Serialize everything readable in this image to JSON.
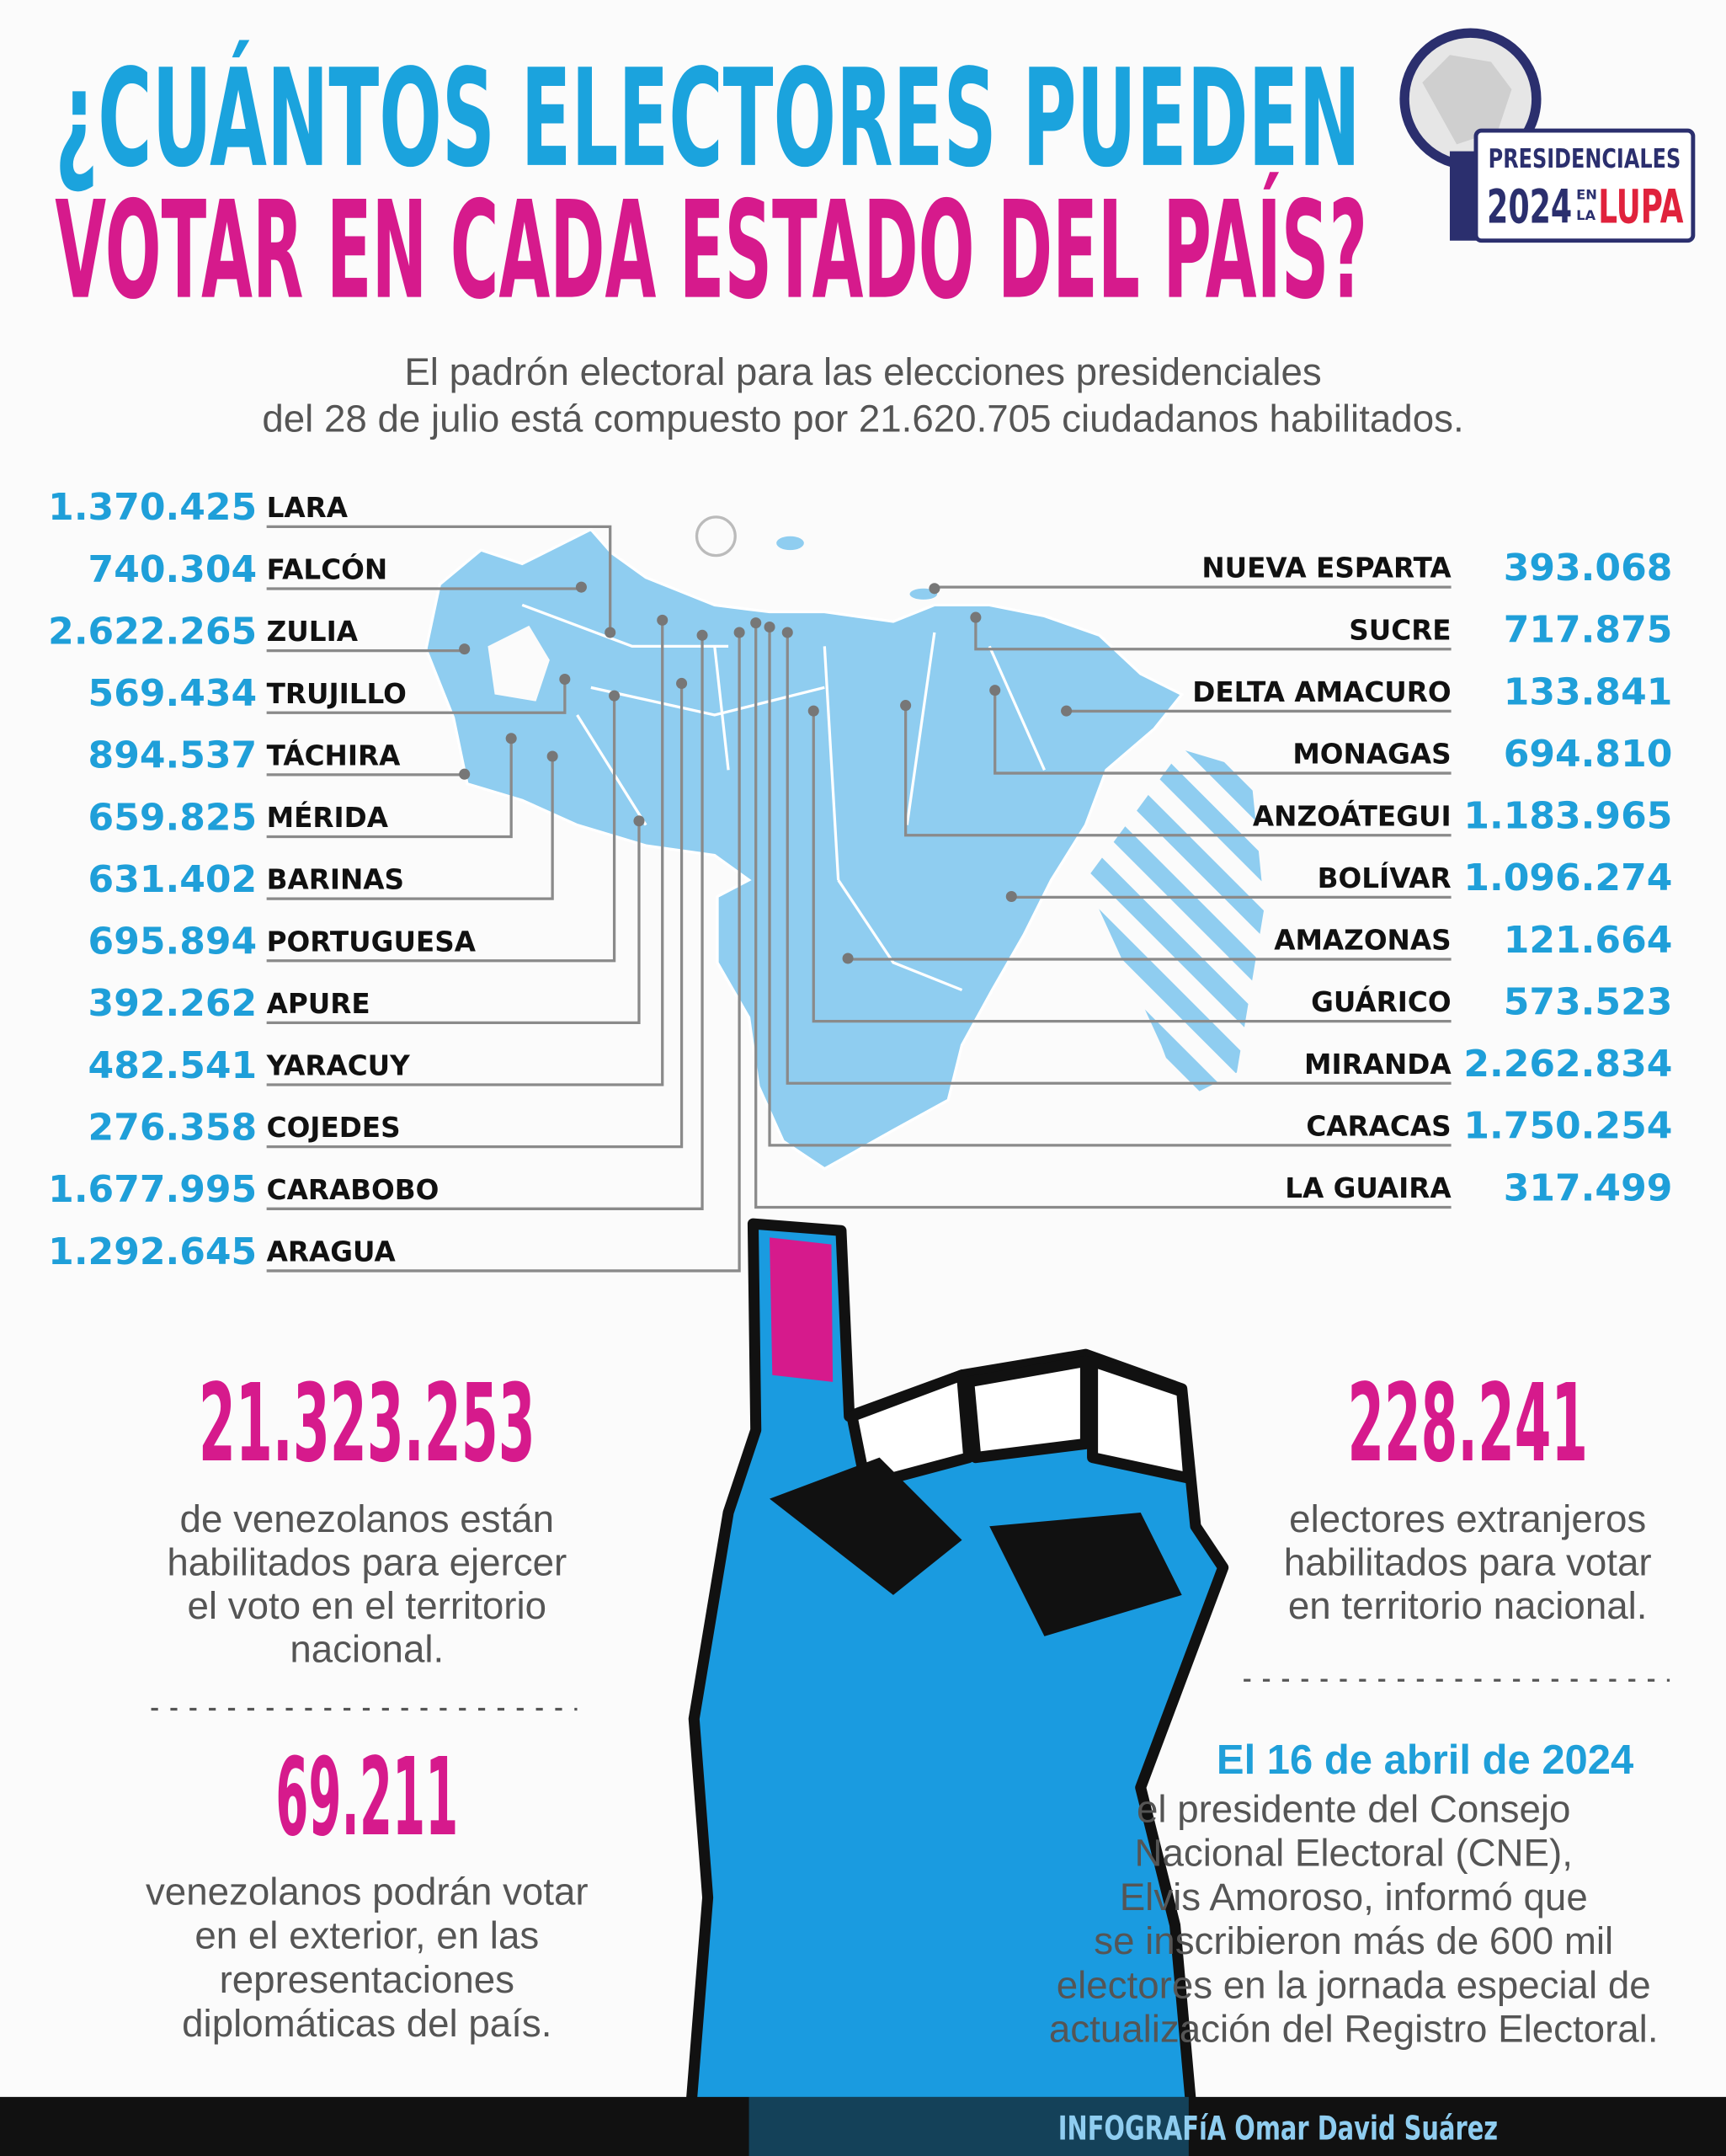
{
  "header": {
    "title_line1": "¿CUÁNTOS ELECTORES PUEDEN",
    "title_line2": "VOTAR EN CADA ESTADO DEL PAÍS?",
    "subtitle_lines": [
      "El padrón electoral para las elecciones presidenciales",
      "del 28 de julio está compuesto por 21.620.705 ciudadanos habilitados."
    ]
  },
  "logo": {
    "line1": "PRESIDENCIALES",
    "year": "2024",
    "en": "EN",
    "la": "LA",
    "lupa": "LUPA"
  },
  "states_left": [
    {
      "value": "1.370.425",
      "name": "LARA"
    },
    {
      "value": "740.304",
      "name": "FALCÓN"
    },
    {
      "value": "2.622.265",
      "name": "ZULIA"
    },
    {
      "value": "569.434",
      "name": "TRUJILLO"
    },
    {
      "value": "894.537",
      "name": "TÁCHIRA"
    },
    {
      "value": "659.825",
      "name": "MÉRIDA"
    },
    {
      "value": "631.402",
      "name": "BARINAS"
    },
    {
      "value": "695.894",
      "name": "PORTUGUESA"
    },
    {
      "value": "392.262",
      "name": "APURE"
    },
    {
      "value": "482.541",
      "name": "YARACUY"
    },
    {
      "value": "276.358",
      "name": "COJEDES"
    },
    {
      "value": "1.677.995",
      "name": "CARABOBO"
    },
    {
      "value": "1.292.645",
      "name": "ARAGUA"
    }
  ],
  "states_right": [
    {
      "name": "NUEVA ESPARTA",
      "value": "393.068"
    },
    {
      "name": "SUCRE",
      "value": "717.875"
    },
    {
      "name": "DELTA AMACURO",
      "value": "133.841"
    },
    {
      "name": "MONAGAS",
      "value": "694.810"
    },
    {
      "name": "ANZOÁTEGUI",
      "value": "1.183.965"
    },
    {
      "name": "BOLÍVAR",
      "value": "1.096.274"
    },
    {
      "name": "AMAZONAS",
      "value": "121.664"
    },
    {
      "name": "GUÁRICO",
      "value": "573.523"
    },
    {
      "name": "MIRANDA",
      "value": "2.262.834"
    },
    {
      "name": "CARACAS",
      "value": "1.750.254"
    },
    {
      "name": "LA GUAIRA",
      "value": "317.499"
    }
  ],
  "stats": {
    "resident": {
      "value": "21.323.253",
      "lines": [
        "de venezolanos están",
        "habilitados para ejercer",
        "el voto en el territorio",
        "nacional."
      ]
    },
    "foreign": {
      "value": "228.241",
      "lines": [
        "electores extranjeros",
        "habilitados para votar",
        "en territorio nacional."
      ]
    },
    "abroad": {
      "value": "69.211",
      "lines": [
        "venezolanos podrán votar",
        "en el exterior, en las",
        "representaciones",
        "diplomáticas del país."
      ]
    },
    "cne": {
      "date": "El 16 de abril de 2024",
      "lines": [
        "el presidente del Consejo",
        "Nacional Electoral (CNE),",
        "Elvis Amoroso, informó que",
        "se inscribieron más de 600 mil",
        "electores en la jornada especial de",
        "actualización del Registro Electoral."
      ]
    }
  },
  "footer": "INFOGRAFíA Omar David Suárez"
}
